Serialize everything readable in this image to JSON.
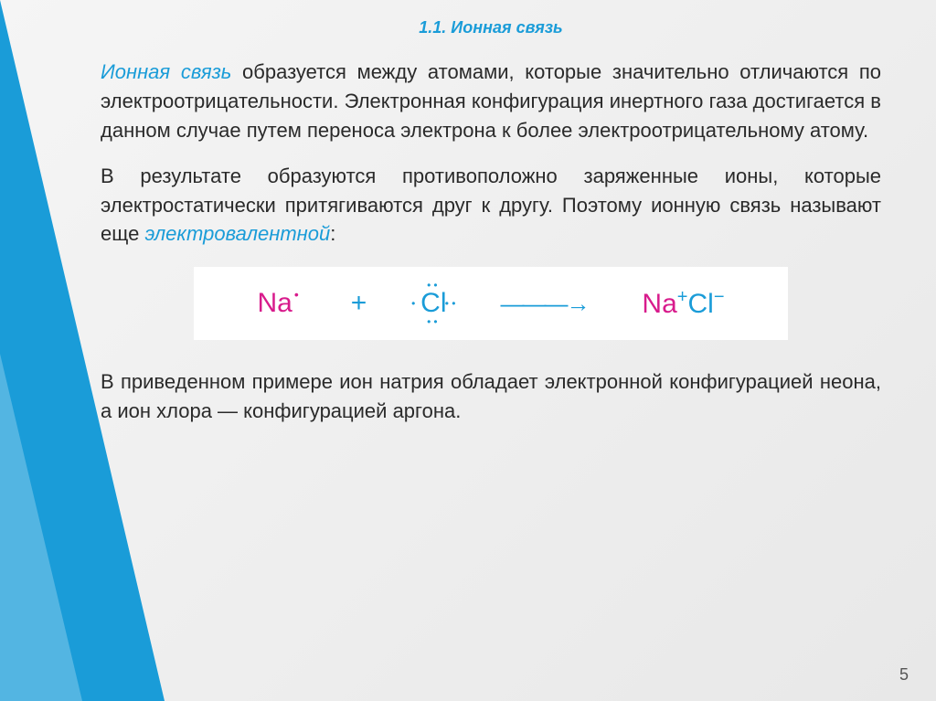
{
  "slide": {
    "section_title": "1.1. Ионная связь",
    "para1_lead": "Ионная связь",
    "para1_rest": " образуется между атомами, которые значительно отличаются по электроотрицательности. Электронная конфигурация инертного газа достигается в данном случае путем переноса электрона к более электроотрицательному атому.",
    "para2_a": "В результате образуются противоположно заряженные ионы, которые электростатически притягиваются друг к другу. Поэтому ионную связь называют еще ",
    "para2_highlight": "электровалентной",
    "para2_b": ":",
    "para3": "В приведенном примере ион натрия обладает электронной конфигурацией неона, а ион хлора — конфигурацией аргона.",
    "page_number": "5"
  },
  "equation": {
    "na_text": "Na",
    "na_dot": "•",
    "plus": "+",
    "cl_text": "Cl",
    "cl_dot_left": "•",
    "cl_dot_top": "••",
    "cl_dot_bottom": "••",
    "cl_dot_right": "•\n•",
    "arrow": "———→",
    "na_ion": "Na",
    "na_charge": "+",
    "cl_ion": "Cl",
    "cl_charge": "−"
  },
  "colors": {
    "accent_blue": "#1a9cd8",
    "accent_pink": "#d81b8c",
    "text": "#2a2a2a",
    "bg_light": "#f5f5f5",
    "bg_dark": "#e8e8e8",
    "white": "#ffffff"
  }
}
